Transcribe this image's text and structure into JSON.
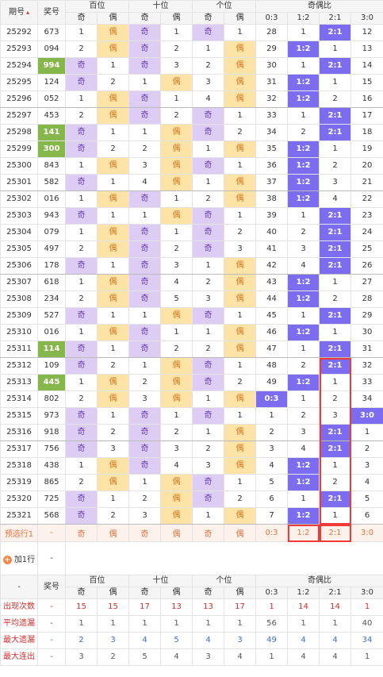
{
  "header": {
    "period": "期号",
    "number": "奖号",
    "groups": [
      "百位",
      "十位",
      "个位",
      "奇偶比"
    ],
    "sub": [
      "奇",
      "偶",
      "奇",
      "偶",
      "奇",
      "偶",
      "0:3",
      "1:2",
      "2:1",
      "3:0"
    ]
  },
  "rows": [
    [
      "25292",
      "673",
      "1",
      "偶",
      "奇",
      "1",
      "奇",
      "1",
      "28",
      "1",
      "2:1",
      "12"
    ],
    [
      "25293",
      "094",
      "2",
      "偶",
      "奇",
      "2",
      "1",
      "偶",
      "29",
      "1:2",
      "1",
      "13"
    ],
    [
      "25294",
      "994",
      "奇",
      "1",
      "奇",
      "3",
      "2",
      "偶",
      "30",
      "1",
      "2:1",
      "14"
    ],
    [
      "25295",
      "124",
      "奇",
      "2",
      "1",
      "偶",
      "3",
      "偶",
      "31",
      "1:2",
      "1",
      "15"
    ],
    [
      "25296",
      "052",
      "1",
      "偶",
      "奇",
      "1",
      "4",
      "偶",
      "32",
      "1:2",
      "2",
      "16"
    ],
    [
      "25297",
      "453",
      "2",
      "偶",
      "奇",
      "2",
      "奇",
      "1",
      "33",
      "1",
      "2:1",
      "17"
    ],
    [
      "25298",
      "141",
      "奇",
      "1",
      "1",
      "偶",
      "奇",
      "2",
      "34",
      "2",
      "2:1",
      "18"
    ],
    [
      "25299",
      "300",
      "奇",
      "2",
      "2",
      "偶",
      "1",
      "偶",
      "35",
      "1:2",
      "1",
      "19"
    ],
    [
      "25300",
      "843",
      "1",
      "偶",
      "3",
      "偶",
      "奇",
      "1",
      "36",
      "1:2",
      "2",
      "20"
    ],
    [
      "25301",
      "582",
      "奇",
      "1",
      "4",
      "偶",
      "1",
      "偶",
      "37",
      "1:2",
      "3",
      "21"
    ],
    [
      "25302",
      "016",
      "1",
      "偶",
      "奇",
      "1",
      "2",
      "偶",
      "38",
      "1:2",
      "4",
      "22"
    ],
    [
      "25303",
      "943",
      "奇",
      "1",
      "1",
      "偶",
      "奇",
      "1",
      "39",
      "1",
      "2:1",
      "23"
    ],
    [
      "25304",
      "079",
      "1",
      "偶",
      "奇",
      "1",
      "奇",
      "2",
      "40",
      "2",
      "2:1",
      "24"
    ],
    [
      "25305",
      "497",
      "2",
      "偶",
      "奇",
      "2",
      "奇",
      "3",
      "41",
      "3",
      "2:1",
      "25"
    ],
    [
      "25306",
      "178",
      "奇",
      "1",
      "奇",
      "3",
      "1",
      "偶",
      "42",
      "4",
      "2:1",
      "26"
    ],
    [
      "25307",
      "618",
      "1",
      "偶",
      "奇",
      "4",
      "2",
      "偶",
      "43",
      "1:2",
      "1",
      "27"
    ],
    [
      "25308",
      "234",
      "2",
      "偶",
      "奇",
      "5",
      "3",
      "偶",
      "44",
      "1:2",
      "2",
      "28"
    ],
    [
      "25309",
      "527",
      "奇",
      "1",
      "1",
      "偶",
      "奇",
      "1",
      "45",
      "1",
      "2:1",
      "29"
    ],
    [
      "25310",
      "016",
      "1",
      "偶",
      "奇",
      "1",
      "1",
      "偶",
      "46",
      "1:2",
      "1",
      "30"
    ],
    [
      "25311",
      "114",
      "奇",
      "1",
      "奇",
      "2",
      "2",
      "偶",
      "47",
      "1",
      "2:1",
      "31"
    ],
    [
      "25312",
      "109",
      "奇",
      "2",
      "1",
      "偶",
      "奇",
      "1",
      "48",
      "2",
      "2:1",
      "32"
    ],
    [
      "25313",
      "445",
      "1",
      "偶",
      "2",
      "偶",
      "奇",
      "2",
      "49",
      "1:2",
      "1",
      "33"
    ],
    [
      "25314",
      "802",
      "2",
      "偶",
      "3",
      "偶",
      "1",
      "偶",
      "0:3",
      "1",
      "2",
      "34"
    ],
    [
      "25315",
      "973",
      "奇",
      "1",
      "奇",
      "1",
      "奇",
      "1",
      "1",
      "2",
      "3",
      "3:0"
    ],
    [
      "25316",
      "918",
      "奇",
      "2",
      "奇",
      "2",
      "1",
      "偶",
      "2",
      "3",
      "2:1",
      "1"
    ],
    [
      "25317",
      "756",
      "奇",
      "3",
      "奇",
      "3",
      "2",
      "偶",
      "3",
      "4",
      "2:1",
      "2"
    ],
    [
      "25318",
      "438",
      "1",
      "偶",
      "奇",
      "4",
      "3",
      "偶",
      "4",
      "1:2",
      "1",
      "3"
    ],
    [
      "25319",
      "865",
      "2",
      "偶",
      "1",
      "偶",
      "奇",
      "1",
      "5",
      "1:2",
      "2",
      "4"
    ],
    [
      "25320",
      "725",
      "奇",
      "1",
      "2",
      "偶",
      "奇",
      "2",
      "6",
      "1",
      "2:1",
      "5"
    ],
    [
      "25321",
      "568",
      "奇",
      "2",
      "3",
      "偶",
      "1",
      "偶",
      "7",
      "1:2",
      "1",
      "6"
    ]
  ],
  "predict": [
    "预选行1",
    "-",
    "奇",
    "偶",
    "奇",
    "偶",
    "奇",
    "偶",
    "0:3",
    "1:2",
    "2:1",
    "3:0"
  ],
  "add_row": {
    "label": "加1行",
    "value": "-"
  },
  "stats_header": {
    "period": "-",
    "number": "奖号",
    "groups": [
      "百位",
      "十位",
      "个位",
      "奇偶比"
    ],
    "sub": [
      "奇",
      "偶",
      "奇",
      "偶",
      "奇",
      "偶",
      "0:3",
      "1:2",
      "2:1",
      "3:0"
    ]
  },
  "stats": [
    [
      "出现次数",
      "-",
      "15",
      "15",
      "17",
      "13",
      "13",
      "17",
      "1",
      "14",
      "14",
      "1"
    ],
    [
      "平均遗漏",
      "-",
      "1",
      "1",
      "1",
      "1",
      "1",
      "1",
      "56",
      "1",
      "1",
      "40"
    ],
    [
      "最大遗漏",
      "-",
      "2",
      "3",
      "4",
      "5",
      "4",
      "3",
      "49",
      "4",
      "4",
      "34"
    ],
    [
      "最大连出",
      "-",
      "3",
      "2",
      "5",
      "4",
      "3",
      "4",
      "1",
      "4",
      "4",
      "1"
    ]
  ]
}
